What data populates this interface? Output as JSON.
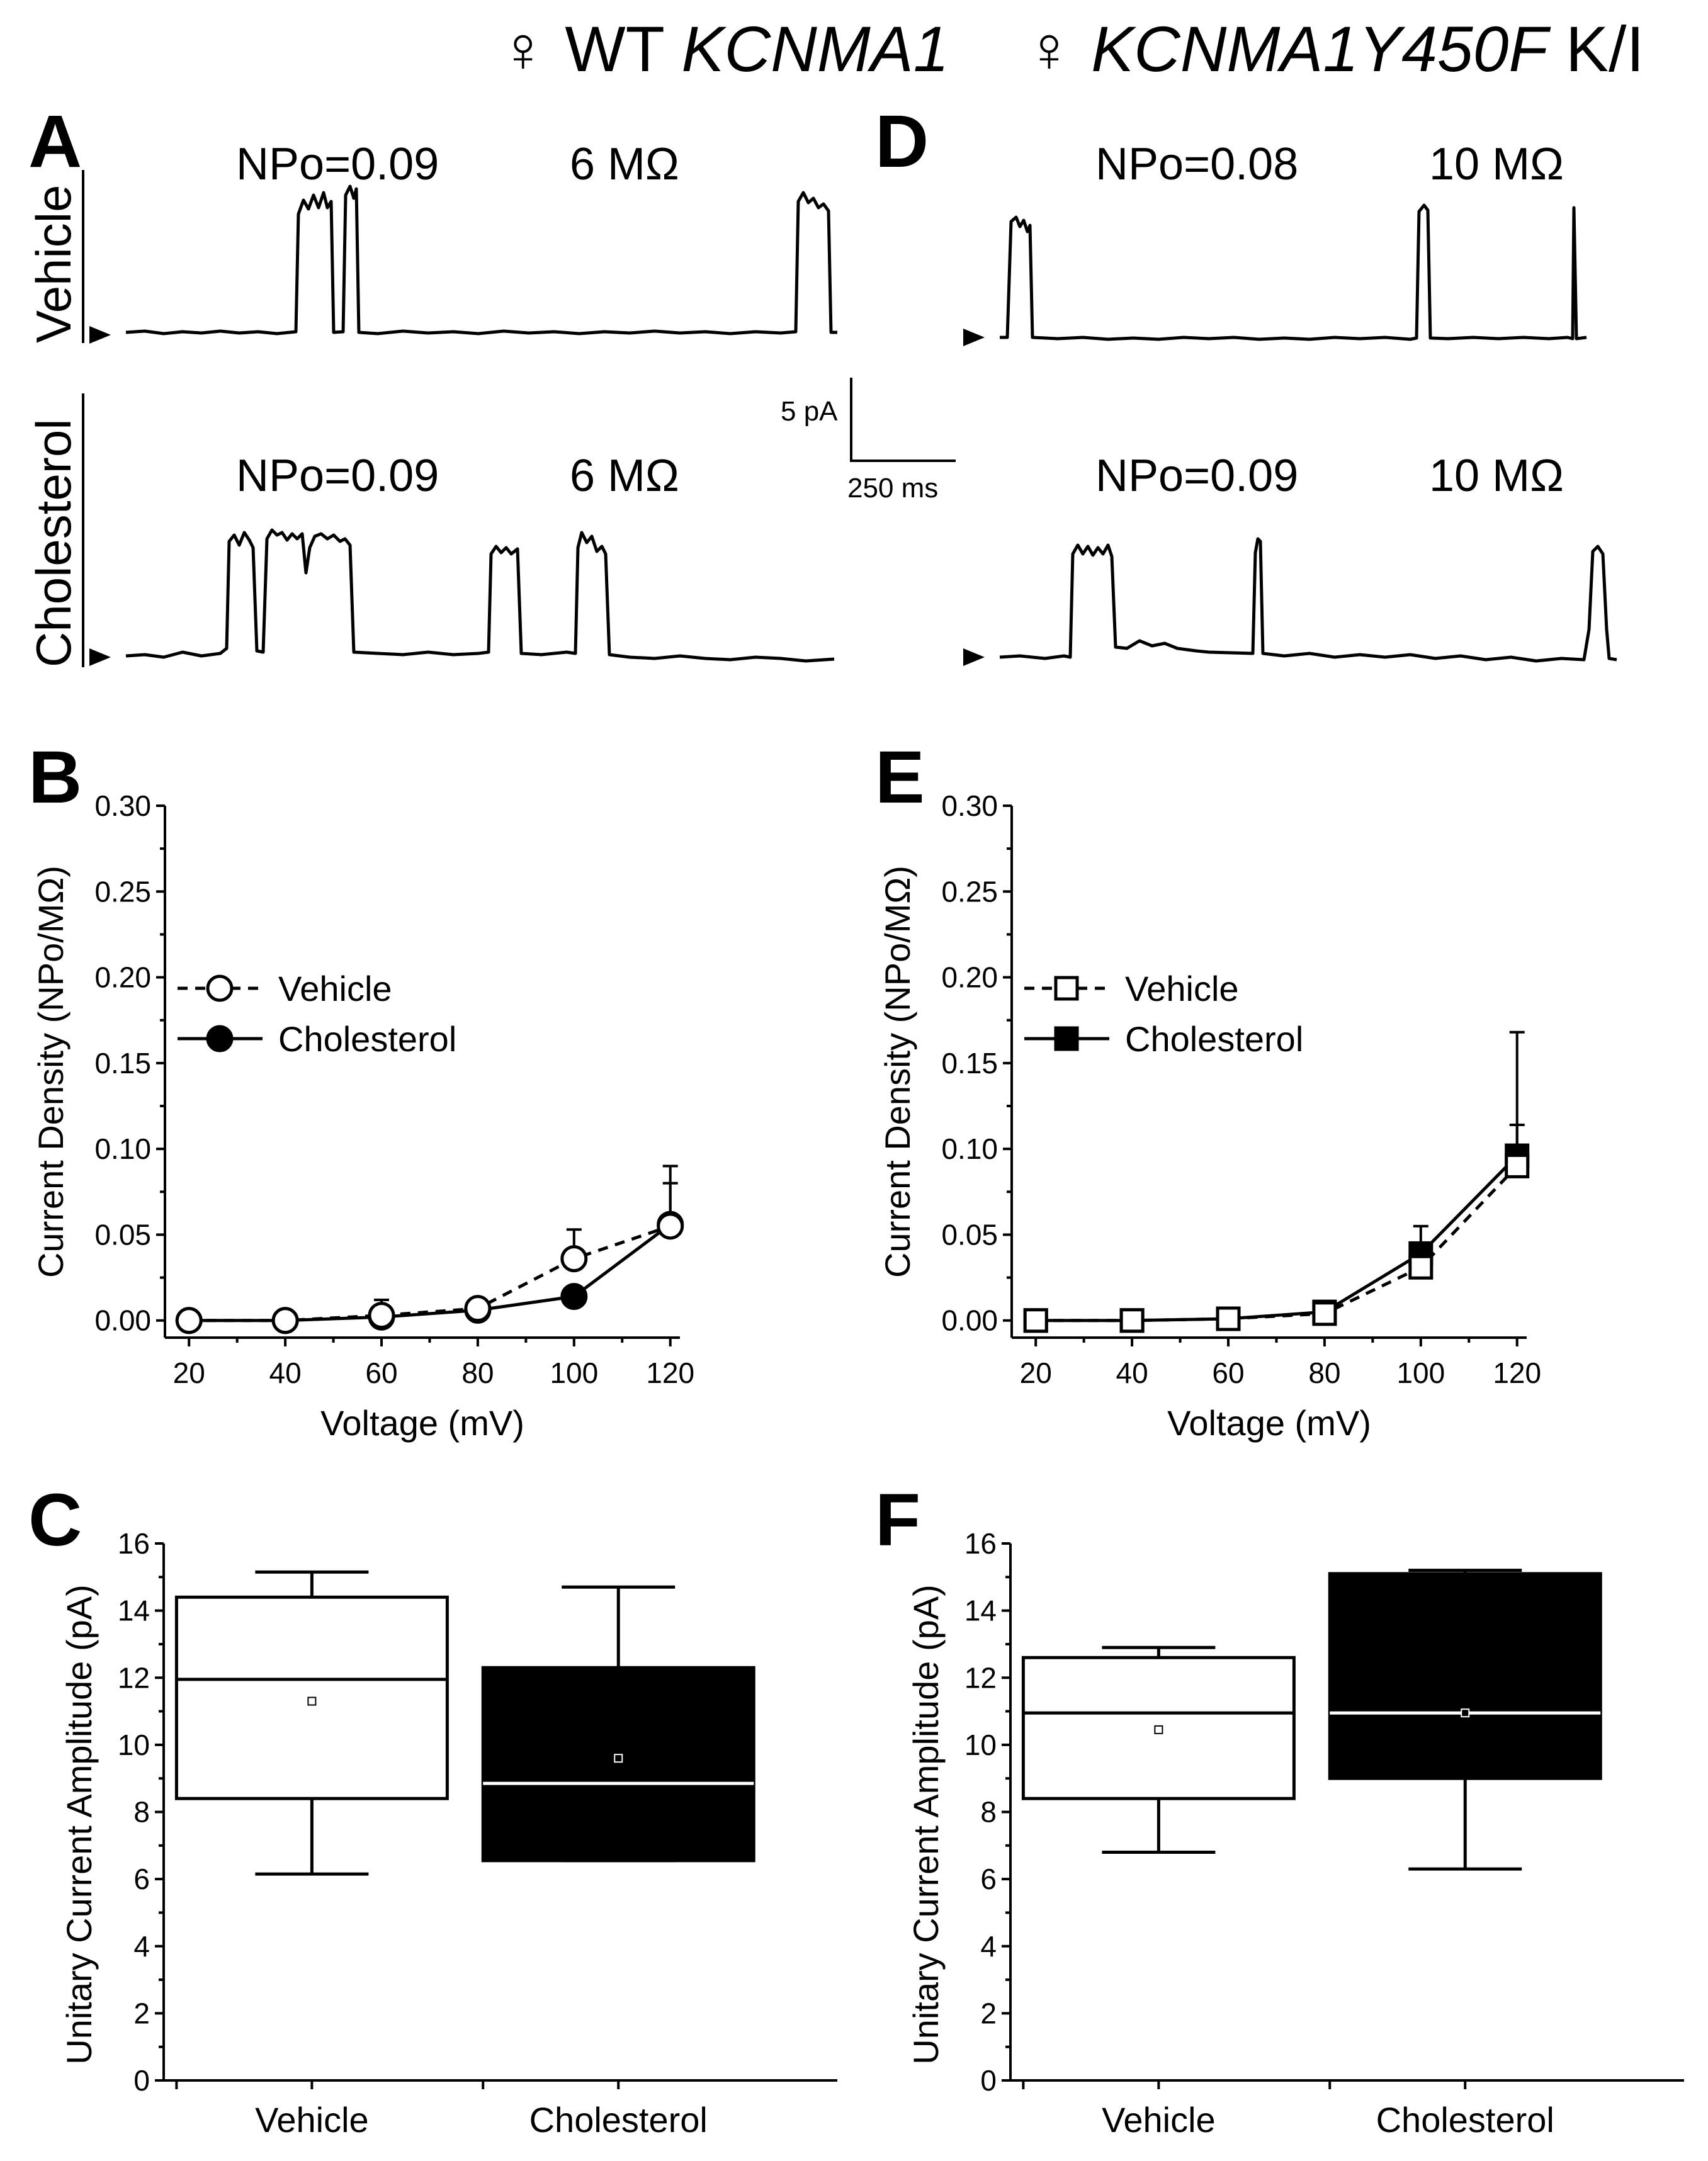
{
  "headers": {
    "left": {
      "symbol": "♀",
      "prefix": "WT",
      "gene": "KCNMA1"
    },
    "right": {
      "symbol": "♀",
      "gene": "KCNMA1Y450F",
      "suffix": "K/I"
    }
  },
  "panels": {
    "A": "A",
    "B": "B",
    "C": "C",
    "D": "D",
    "E": "E",
    "F": "F"
  },
  "traces": {
    "row_labels": {
      "vehicle": "Vehicle",
      "cholesterol": "Cholesterol"
    },
    "A_vehicle": {
      "npo": "NPo=0.09",
      "resistance": "6 MΩ"
    },
    "A_cholesterol": {
      "npo": "NPo=0.09",
      "resistance": "6 MΩ"
    },
    "D_vehicle": {
      "npo": "NPo=0.08",
      "resistance": "10 MΩ"
    },
    "D_cholesterol": {
      "npo": "NPo=0.09",
      "resistance": "10 MΩ"
    },
    "scale_bar": {
      "current": "5 pA",
      "time": "250 ms"
    }
  },
  "chart_data": [
    {
      "id": "B",
      "type": "line",
      "x": [
        20,
        40,
        60,
        80,
        100,
        120
      ],
      "x_ticks": [
        "20",
        "40",
        "60",
        "80",
        "100",
        "120"
      ],
      "y_ticks": [
        "0.00",
        "0.05",
        "0.10",
        "0.15",
        "0.20",
        "0.25",
        "0.30"
      ],
      "xlim": [
        15,
        122
      ],
      "ylim": [
        -0.01,
        0.3
      ],
      "xlabel": "Voltage (mV)",
      "ylabel": "Current Density (NPo/MΩ)",
      "series": [
        {
          "name": "Vehicle",
          "marker": "open-circle",
          "line": "dashed",
          "values": [
            0.0,
            0.0,
            0.003,
            0.007,
            0.036,
            0.055
          ],
          "errors": [
            0.0,
            0.0,
            0.009,
            0.003,
            0.017,
            0.025
          ]
        },
        {
          "name": "Cholesterol",
          "marker": "filled-circle",
          "line": "solid",
          "values": [
            0.0,
            0.0,
            0.002,
            0.006,
            0.014,
            0.056
          ],
          "errors": [
            0.0,
            0.0,
            0.004,
            0.002,
            0.004,
            0.034
          ]
        }
      ]
    },
    {
      "id": "E",
      "type": "line",
      "x": [
        20,
        40,
        60,
        80,
        100,
        120
      ],
      "x_ticks": [
        "20",
        "40",
        "60",
        "80",
        "100",
        "120"
      ],
      "y_ticks": [
        "0.00",
        "0.05",
        "0.10",
        "0.15",
        "0.20",
        "0.25",
        "0.30"
      ],
      "xlim": [
        15,
        122
      ],
      "ylim": [
        -0.01,
        0.3
      ],
      "xlabel": "Voltage (mV)",
      "ylabel": "Current Density (NPo/MΩ)",
      "series": [
        {
          "name": "Vehicle",
          "marker": "open-square",
          "line": "dashed",
          "values": [
            0.0,
            0.0,
            0.001,
            0.004,
            0.031,
            0.09
          ],
          "errors": [
            0.0,
            0.0,
            0.002,
            0.002,
            0.008,
            0.024
          ]
        },
        {
          "name": "Cholesterol",
          "marker": "filled-square",
          "line": "solid",
          "values": [
            0.0,
            0.0,
            0.001,
            0.005,
            0.039,
            0.096
          ],
          "errors": [
            0.0,
            0.0,
            0.002,
            0.002,
            0.016,
            0.072
          ]
        }
      ]
    },
    {
      "id": "C",
      "type": "box",
      "categories": [
        "Vehicle",
        "Cholesterol"
      ],
      "y_ticks": [
        "0",
        "2",
        "4",
        "6",
        "8",
        "10",
        "12",
        "14",
        "16"
      ],
      "ylim": [
        0,
        16
      ],
      "ylabel": "Unitary Current Amplitude (pA)",
      "boxes": [
        {
          "name": "Vehicle",
          "fill": "white",
          "min": 6.15,
          "q1": 8.4,
          "median": 11.95,
          "q3": 14.4,
          "max": 15.15,
          "mean": 11.3
        },
        {
          "name": "Cholesterol",
          "fill": "black",
          "min": 6.55,
          "q1": 6.55,
          "median": 8.85,
          "q3": 12.3,
          "max": 14.7,
          "mean": 9.6
        }
      ]
    },
    {
      "id": "F",
      "type": "box",
      "categories": [
        "Vehicle",
        "Cholesterol"
      ],
      "y_ticks": [
        "0",
        "2",
        "4",
        "6",
        "8",
        "10",
        "12",
        "14",
        "16"
      ],
      "ylim": [
        0,
        16
      ],
      "ylabel": "Unitary Current Amplitude (pA)",
      "boxes": [
        {
          "name": "Vehicle",
          "fill": "white",
          "min": 6.8,
          "q1": 8.4,
          "median": 10.95,
          "q3": 12.6,
          "max": 12.9,
          "mean": 10.45
        },
        {
          "name": "Cholesterol",
          "fill": "black",
          "min": 6.3,
          "q1": 9.0,
          "median": 10.95,
          "q3": 15.1,
          "max": 15.2,
          "mean": 10.95
        }
      ]
    }
  ]
}
